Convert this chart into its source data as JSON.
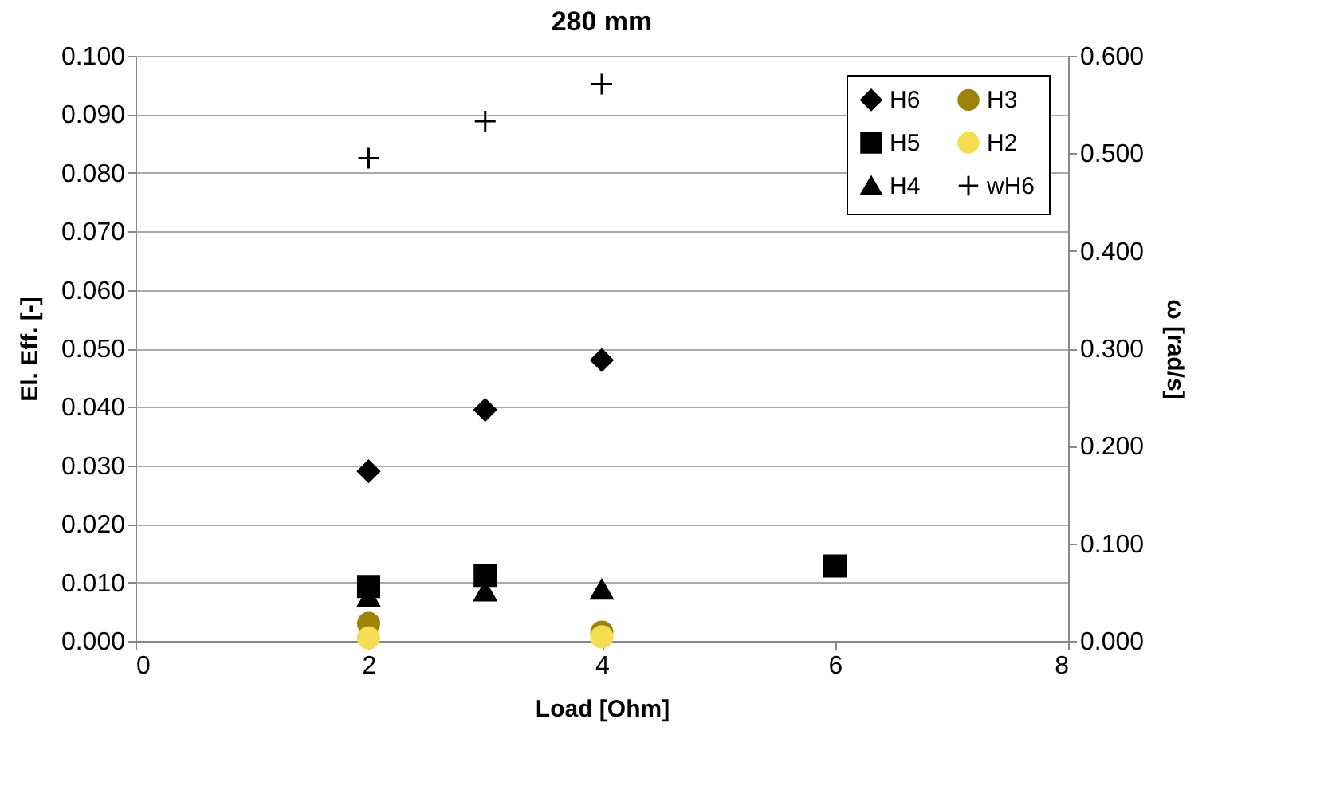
{
  "chart_data": {
    "type": "scatter",
    "title": "280 mm",
    "xlabel": "Load [Ohm]",
    "ylabel": "El. Eff. [-]",
    "y2label": "ω [rad/s]",
    "xlim": [
      0,
      8
    ],
    "xticks": [
      0,
      2,
      4,
      6,
      8
    ],
    "ylim": [
      0,
      0.1
    ],
    "yticks": [
      {
        "value": 0,
        "label": "0.000"
      },
      {
        "value": 0.01,
        "label": "0.010"
      },
      {
        "value": 0.02,
        "label": "0.020"
      },
      {
        "value": 0.03,
        "label": "0.030"
      },
      {
        "value": 0.04,
        "label": "0.040"
      },
      {
        "value": 0.05,
        "label": "0.050"
      },
      {
        "value": 0.06,
        "label": "0.060"
      },
      {
        "value": 0.07,
        "label": "0.070"
      },
      {
        "value": 0.08,
        "label": "0.080"
      },
      {
        "value": 0.09,
        "label": "0.090"
      },
      {
        "value": 0.1,
        "label": "0.100"
      }
    ],
    "y2lim": [
      0,
      0.6
    ],
    "y2ticks": [
      {
        "value": 0,
        "label": "0.000"
      },
      {
        "value": 0.1,
        "label": "0.100"
      },
      {
        "value": 0.2,
        "label": "0.200"
      },
      {
        "value": 0.3,
        "label": "0.300"
      },
      {
        "value": 0.4,
        "label": "0.400"
      },
      {
        "value": 0.5,
        "label": "0.500"
      },
      {
        "value": 0.6,
        "label": "0.600"
      }
    ],
    "grid": "y",
    "legend": "top right",
    "series": [
      {
        "name": "H6",
        "color": "#000000",
        "marker": "diamond",
        "x": [
          2,
          3,
          4
        ],
        "values": [
          0.029,
          0.0395,
          0.048
        ]
      },
      {
        "name": "H5",
        "color": "#000000",
        "marker": "square",
        "x": [
          2,
          3,
          6
        ],
        "values": [
          0.0093,
          0.0112,
          0.0128
        ]
      },
      {
        "name": "H4",
        "color": "#000000",
        "marker": "triangle",
        "x": [
          2,
          3,
          4
        ],
        "values": [
          0.0075,
          0.0085,
          0.0088
        ]
      },
      {
        "name": "H3",
        "color": "#9c8307",
        "marker": "circle",
        "x": [
          2,
          4
        ],
        "values": [
          0.003,
          0.0015
        ]
      },
      {
        "name": "H2",
        "color": "#f5dc50",
        "marker": "circle",
        "x": [
          2,
          4
        ],
        "values": [
          0.0005,
          0.0007
        ]
      },
      {
        "name": "wH6",
        "color": "#000000",
        "marker": "cross",
        "axis": "y2",
        "x": [
          2,
          3,
          4
        ],
        "values": [
          0.495,
          0.533,
          0.571
        ]
      }
    ]
  }
}
